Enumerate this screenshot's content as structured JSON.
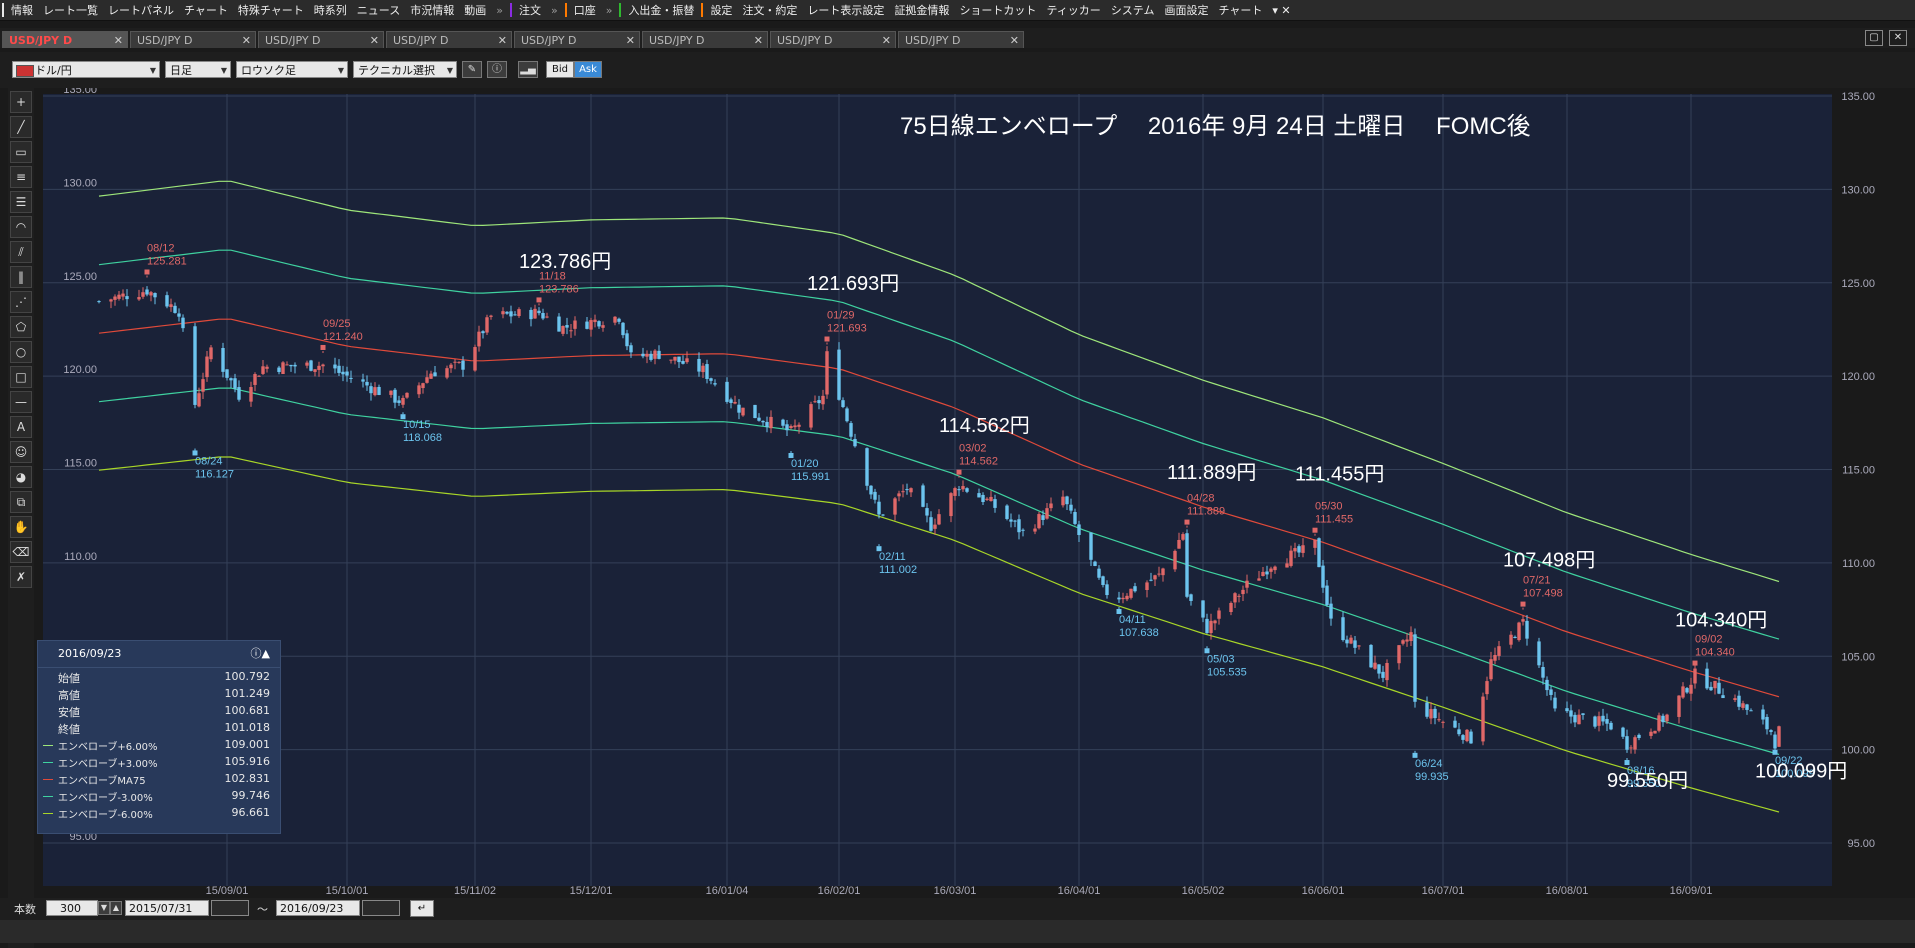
{
  "menu": [
    {
      "label": "情報",
      "bar": "#e8e8e8"
    },
    {
      "label": "レート一覧",
      "bar": ""
    },
    {
      "label": "レートパネル",
      "bar": ""
    },
    {
      "label": "チャート",
      "bar": ""
    },
    {
      "label": "特殊チャート",
      "bar": ""
    },
    {
      "label": "時系列",
      "bar": ""
    },
    {
      "label": "ニュース",
      "bar": ""
    },
    {
      "label": "市況情報",
      "bar": ""
    },
    {
      "label": "動画",
      "bar": ""
    },
    {
      "label": "注文",
      "bar": "#8a2be2"
    },
    {
      "label": "口座",
      "bar": "#ff7a00"
    },
    {
      "label": "入出金・振替",
      "bar": "#2fb82f"
    },
    {
      "label": "設定",
      "bar": "#ff7a00"
    },
    {
      "label": "注文・約定",
      "bar": ""
    },
    {
      "label": "レート表示設定",
      "bar": ""
    },
    {
      "label": "証拠金情報",
      "bar": ""
    },
    {
      "label": "ショートカット",
      "bar": ""
    },
    {
      "label": "ティッカー",
      "bar": ""
    },
    {
      "label": "システム",
      "bar": ""
    },
    {
      "label": "画面設定",
      "bar": ""
    },
    {
      "label": "チャート",
      "bar": ""
    }
  ],
  "tabs": [
    "USD/JPY D",
    "USD/JPY D",
    "USD/JPY D",
    "USD/JPY D",
    "USD/JPY D",
    "USD/JPY D",
    "USD/JPY D",
    "USD/JPY D"
  ],
  "toolbar": {
    "pair": "ドル/円",
    "period": "日足",
    "style": "ロウソク足",
    "technical": "テクニカル選択",
    "bid": "Bid",
    "ask": "Ask"
  },
  "footer": {
    "count_label": "本数",
    "count": "300",
    "start": "2015/07/31",
    "tilde": "〜",
    "end": "2016/09/23"
  },
  "infopanel": {
    "date": "2016/09/23",
    "rows": [
      {
        "k": "始値",
        "v": "100.792",
        "color": ""
      },
      {
        "k": "高値",
        "v": "101.249",
        "color": ""
      },
      {
        "k": "安値",
        "v": "100.681",
        "color": ""
      },
      {
        "k": "終値",
        "v": "101.018",
        "color": ""
      },
      {
        "k": "エンベローブ+6.00%",
        "v": "109.001",
        "color": "#9ee67a"
      },
      {
        "k": "エンベローブ+3.00%",
        "v": "105.916",
        "color": "#3fd2a0"
      },
      {
        "k": "エンベローブMA75",
        "v": "102.831",
        "color": "#e04a3a"
      },
      {
        "k": "エンベローブ-3.00%",
        "v": "99.746",
        "color": "#3fd2a0"
      },
      {
        "k": "エンベローブ-6.00%",
        "v": "96.661",
        "color": "#a8d628"
      }
    ]
  },
  "chart_data": {
    "type": "candlestick",
    "title": "75日線エンベロープ　 2016年 9月 24日 土曜日　 FOMC後",
    "ylim": [
      95,
      135
    ],
    "yticks": [
      "135.00",
      "130.00",
      "125.00",
      "120.00",
      "115.00",
      "110.00",
      "105.00",
      "100.00",
      "95.00"
    ],
    "xticks": [
      "15/09/01",
      "15/10/01",
      "15/11/02",
      "15/12/01",
      "16/01/04",
      "16/02/01",
      "16/03/01",
      "16/04/01",
      "16/05/02",
      "16/06/01",
      "16/07/01",
      "16/08/01",
      "16/09/01"
    ],
    "colors": {
      "up": "#e06868",
      "down": "#6cc4ee",
      "ma75": "#e04a3a",
      "env3": "#3fd2a0",
      "env6_upper": "#9ee67a",
      "env6_lower": "#a8d628",
      "bg": "#1a2238",
      "grid": "#344058"
    },
    "close_path": [
      [
        "2015-07-31",
        124.0
      ],
      [
        "2015-08-12",
        124.6
      ],
      [
        "2015-08-20",
        123.5
      ],
      [
        "2015-08-24",
        118.5
      ],
      [
        "2015-08-28",
        121.5
      ],
      [
        "2015-09-04",
        119.0
      ],
      [
        "2015-09-10",
        120.5
      ],
      [
        "2015-09-25",
        120.6
      ],
      [
        "2015-10-01",
        120.0
      ],
      [
        "2015-10-15",
        118.6
      ],
      [
        "2015-10-22",
        120.2
      ],
      [
        "2015-10-30",
        120.6
      ],
      [
        "2015-11-06",
        123.2
      ],
      [
        "2015-11-18",
        123.4
      ],
      [
        "2015-11-24",
        122.6
      ],
      [
        "2015-12-03",
        123.0
      ],
      [
        "2015-12-08",
        123.2
      ],
      [
        "2015-12-11",
        121.0
      ],
      [
        "2015-12-18",
        121.2
      ],
      [
        "2015-12-29",
        120.3
      ],
      [
        "2016-01-07",
        118.3
      ],
      [
        "2016-01-14",
        117.6
      ],
      [
        "2016-01-20",
        117.0
      ],
      [
        "2016-01-28",
        118.9
      ],
      [
        "2016-01-29",
        121.1
      ],
      [
        "2016-02-04",
        117.0
      ],
      [
        "2016-02-11",
        112.5
      ],
      [
        "2016-02-18",
        114.0
      ],
      [
        "2016-02-24",
        112.0
      ],
      [
        "2016-03-02",
        114.2
      ],
      [
        "2016-03-10",
        113.2
      ],
      [
        "2016-03-18",
        111.6
      ],
      [
        "2016-03-28",
        113.5
      ],
      [
        "2016-04-07",
        108.5
      ],
      [
        "2016-04-11",
        108.2
      ],
      [
        "2016-04-21",
        109.3
      ],
      [
        "2016-04-27",
        111.6
      ],
      [
        "2016-04-28",
        108.2
      ],
      [
        "2016-05-03",
        106.5
      ],
      [
        "2016-05-13",
        108.8
      ],
      [
        "2016-05-20",
        110.1
      ],
      [
        "2016-05-27",
        110.6
      ],
      [
        "2016-05-30",
        111.0
      ],
      [
        "2016-06-03",
        106.8
      ],
      [
        "2016-06-16",
        104.0
      ],
      [
        "2016-06-23",
        106.2
      ],
      [
        "2016-06-24",
        102.4
      ],
      [
        "2016-07-08",
        100.6
      ],
      [
        "2016-07-13",
        104.7
      ],
      [
        "2016-07-21",
        106.8
      ],
      [
        "2016-07-29",
        102.0
      ],
      [
        "2016-08-12",
        101.3
      ],
      [
        "2016-08-16",
        100.3
      ],
      [
        "2016-08-26",
        101.8
      ],
      [
        "2016-09-02",
        104.0
      ],
      [
        "2016-09-12",
        102.7
      ],
      [
        "2016-09-21",
        101.0
      ],
      [
        "2016-09-22",
        100.4
      ],
      [
        "2016-09-23",
        101.0
      ]
    ],
    "ma75": [
      [
        "2015-07-31",
        122.3
      ],
      [
        "2015-09-01",
        123.1
      ],
      [
        "2015-10-01",
        121.6
      ],
      [
        "2015-11-02",
        120.8
      ],
      [
        "2015-12-01",
        121.1
      ],
      [
        "2016-01-04",
        121.2
      ],
      [
        "2016-02-01",
        120.4
      ],
      [
        "2016-03-01",
        118.3
      ],
      [
        "2016-04-01",
        115.3
      ],
      [
        "2016-05-02",
        113.0
      ],
      [
        "2016-06-01",
        111.1
      ],
      [
        "2016-07-01",
        108.8
      ],
      [
        "2016-08-01",
        106.3
      ],
      [
        "2016-09-01",
        104.2
      ],
      [
        "2016-09-23",
        102.831
      ]
    ],
    "envelope_pct": [
      6,
      3,
      -3,
      -6
    ],
    "labels": [
      {
        "date": "2015-08-12",
        "price": 125.281,
        "kind": "high",
        "d": "08/12",
        "p": "125.281"
      },
      {
        "date": "2015-08-24",
        "price": 116.127,
        "kind": "low",
        "d": "08/24",
        "p": "116.127"
      },
      {
        "date": "2015-09-25",
        "price": 121.24,
        "kind": "high",
        "d": "09/25",
        "p": "121.240"
      },
      {
        "date": "2015-10-15",
        "price": 118.068,
        "kind": "low",
        "d": "10/15",
        "p": "118.068"
      },
      {
        "date": "2015-11-18",
        "price": 123.786,
        "kind": "high",
        "d": "11/18",
        "p": "123.786"
      },
      {
        "date": "2016-01-20",
        "price": 115.991,
        "kind": "low",
        "d": "01/20",
        "p": "115.991"
      },
      {
        "date": "2016-01-29",
        "price": 121.693,
        "kind": "high",
        "d": "01/29",
        "p": "121.693"
      },
      {
        "date": "2016-02-11",
        "price": 111.002,
        "kind": "low",
        "d": "02/11",
        "p": "111.002"
      },
      {
        "date": "2016-03-02",
        "price": 114.562,
        "kind": "high",
        "d": "03/02",
        "p": "114.562"
      },
      {
        "date": "2016-04-11",
        "price": 107.638,
        "kind": "low",
        "d": "04/11",
        "p": "107.638"
      },
      {
        "date": "2016-04-28",
        "price": 111.889,
        "kind": "high",
        "d": "04/28",
        "p": "111.889"
      },
      {
        "date": "2016-05-03",
        "price": 105.535,
        "kind": "low",
        "d": "05/03",
        "p": "105.535"
      },
      {
        "date": "2016-05-30",
        "price": 111.455,
        "kind": "high",
        "d": "05/30",
        "p": "111.455"
      },
      {
        "date": "2016-06-24",
        "price": 99.935,
        "kind": "low",
        "d": "06/24",
        "p": "99.935"
      },
      {
        "date": "2016-07-21",
        "price": 107.498,
        "kind": "high",
        "d": "07/21",
        "p": "107.498"
      },
      {
        "date": "2016-08-16",
        "price": 99.55,
        "kind": "low",
        "d": "08/16",
        "p": "99.550"
      },
      {
        "date": "2016-09-02",
        "price": 104.34,
        "kind": "high",
        "d": "09/02",
        "p": "104.340"
      },
      {
        "date": "2016-09-22",
        "price": 100.099,
        "kind": "low",
        "d": "09/22",
        "p": "100.099"
      }
    ],
    "annotations": [
      {
        "text": "123.786円",
        "date": "2015-11-18",
        "price": 125.8
      },
      {
        "text": "121.693円",
        "date": "2016-01-29",
        "price": 124.6
      },
      {
        "text": "114.562円",
        "date": "2016-03-02",
        "price": 117.0
      },
      {
        "text": "111.889円",
        "date": "2016-04-28",
        "price": 114.5
      },
      {
        "text": "111.455円",
        "date": "2016-05-30",
        "price": 114.4
      },
      {
        "text": "107.498円",
        "date": "2016-07-21",
        "price": 109.8
      },
      {
        "text": "104.340円",
        "date": "2016-09-02",
        "price": 106.6
      },
      {
        "text": "99.550円",
        "date": "2016-08-16",
        "price": 98.0
      },
      {
        "text": "100.099円",
        "date": "2016-09-22",
        "price": 98.5
      }
    ]
  }
}
